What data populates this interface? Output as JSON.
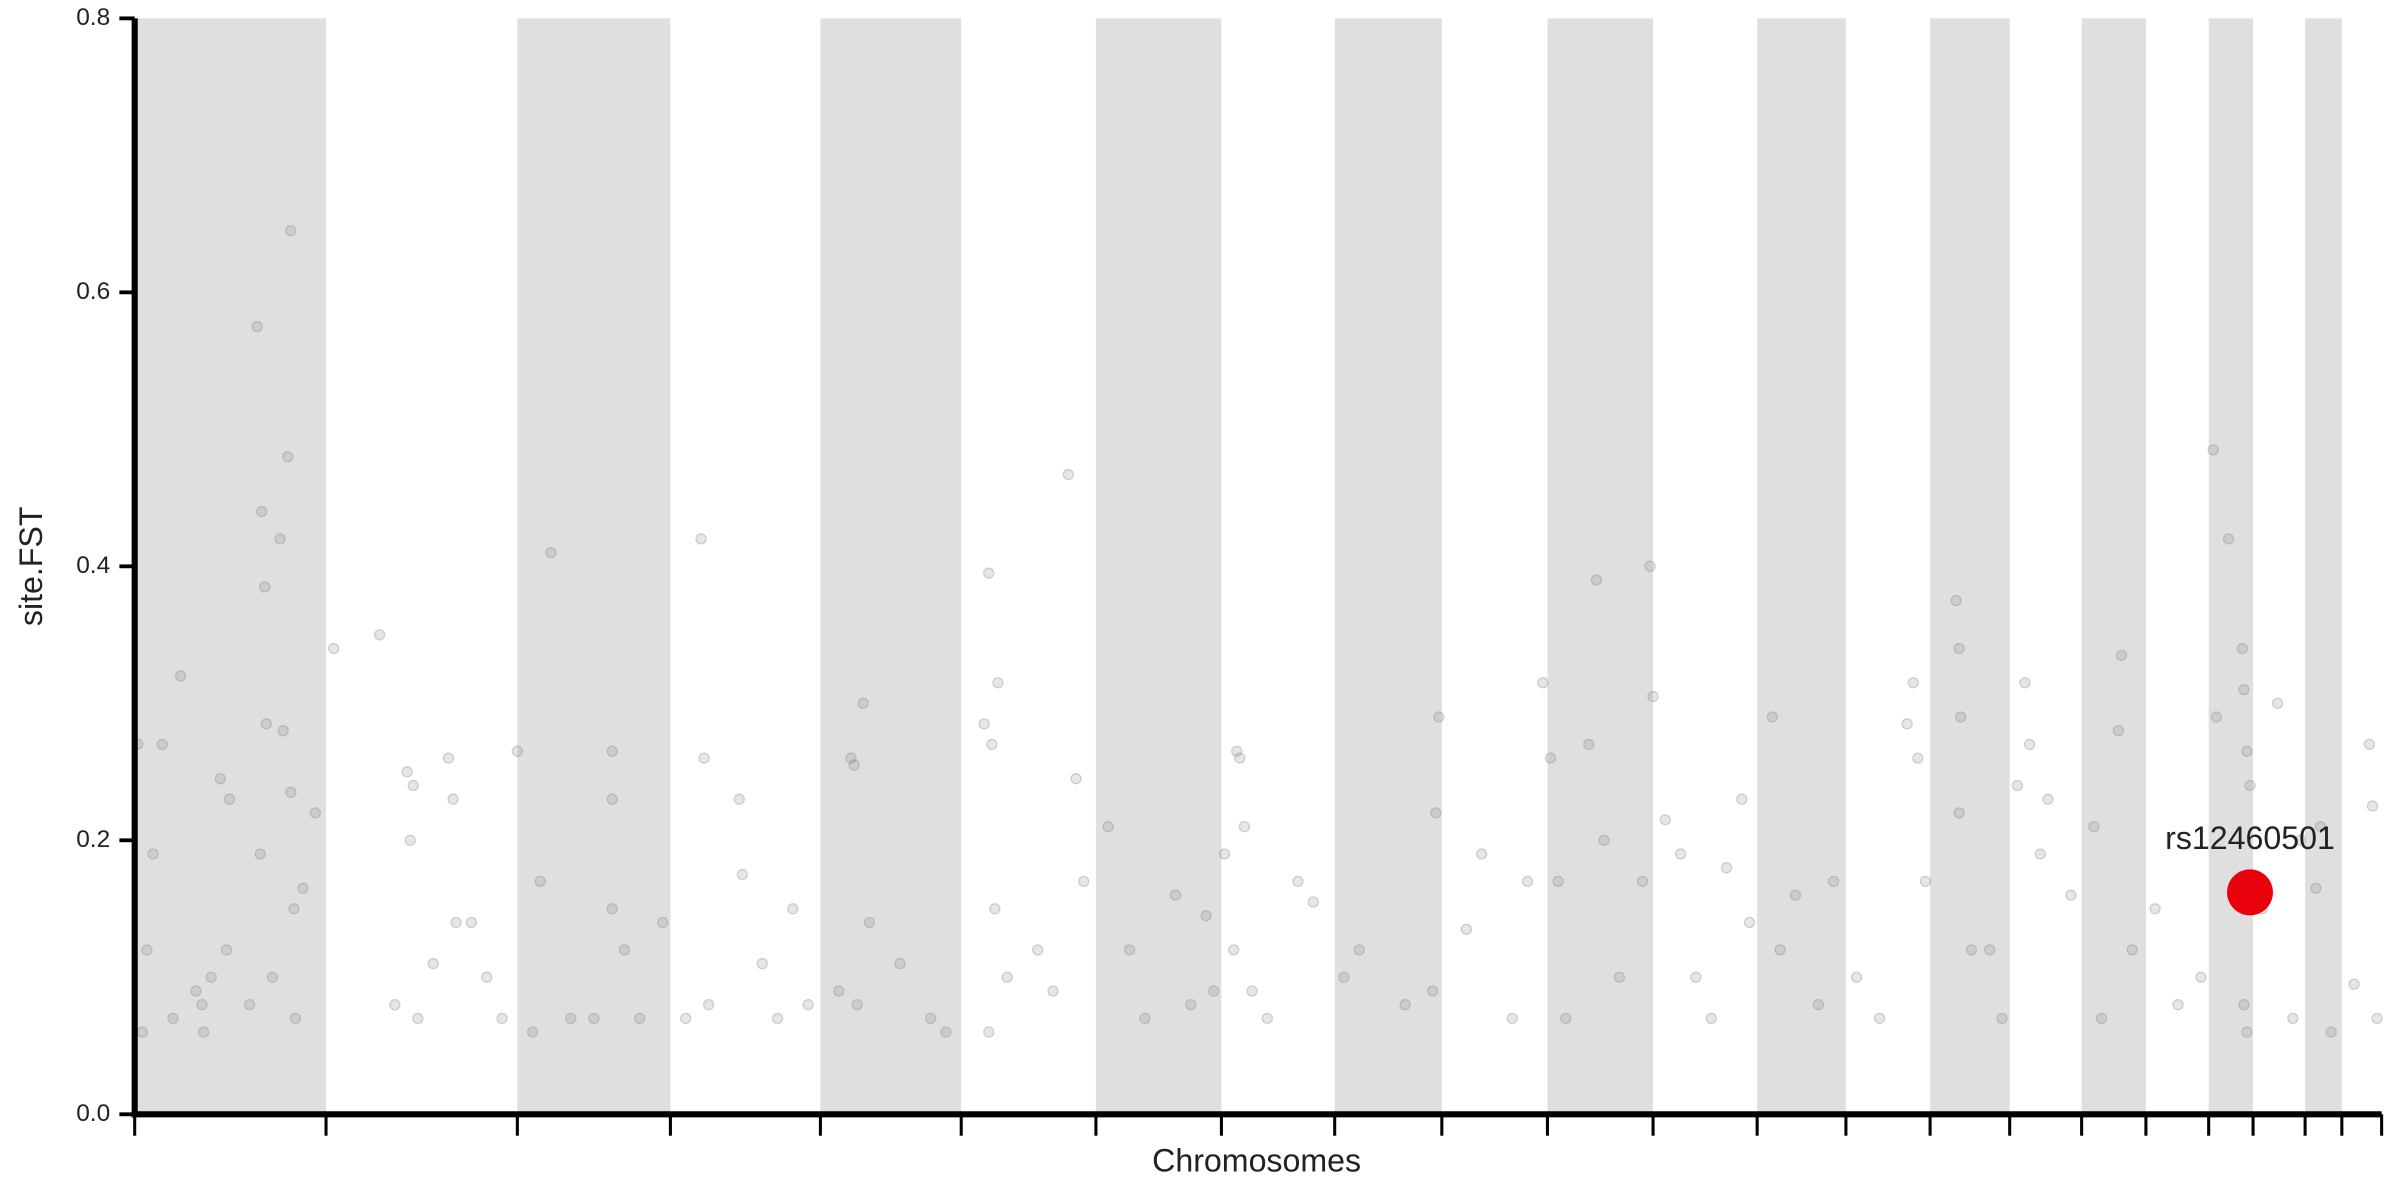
{
  "chart_data": {
    "type": "scatter",
    "xlabel": "Chromosomes",
    "ylabel": "site.FST",
    "xlim": [
      0,
      1468
    ],
    "ylim": [
      0,
      0.8
    ],
    "xticks": [
      0,
      125,
      250,
      350,
      448,
      540,
      628,
      710,
      784,
      854,
      923,
      992,
      1060,
      1118,
      1173,
      1225,
      1272,
      1314,
      1355,
      1384,
      1418,
      1442,
      1468
    ],
    "yticks": [
      {
        "value": 0,
        "label": "0.0"
      },
      0.2,
      0.4,
      0.6,
      0.8
    ],
    "shade_alternate": true,
    "shade_color": "#dfdfdf",
    "series": [
      {
        "color": "#808080",
        "x": [
          2,
          5,
          8,
          12,
          18,
          30,
          44,
          45,
          50,
          56,
          62,
          80,
          82,
          83,
          85,
          86,
          95,
          97,
          100,
          102,
          102,
          104,
          105,
          110,
          118,
          90,
          75,
          60,
          40,
          25,
          130,
          160,
          178,
          180,
          182,
          185,
          205,
          208,
          210,
          220,
          230,
          240,
          195,
          170,
          250,
          265,
          272,
          285,
          300,
          312,
          312,
          312,
          320,
          330,
          345,
          260,
          370,
          372,
          375,
          395,
          397,
          410,
          420,
          430,
          440,
          360,
          468,
          470,
          476,
          472,
          480,
          500,
          520,
          530,
          460,
          555,
          558,
          560,
          562,
          564,
          558,
          570,
          590,
          610,
          615,
          620,
          600,
          636,
          650,
          660,
          680,
          690,
          700,
          705,
          712,
          718,
          720,
          722,
          725,
          740,
          760,
          770,
          730,
          790,
          800,
          830,
          848,
          850,
          852,
          870,
          880,
          900,
          910,
          920,
          925,
          930,
          935,
          950,
          955,
          960,
          970,
          985,
          990,
          992,
          1000,
          1010,
          1020,
          1040,
          1050,
          1055,
          1030,
          1070,
          1075,
          1085,
          1110,
          1100,
          1125,
          1140,
          1158,
          1162,
          1165,
          1170,
          1190,
          1192,
          1193,
          1192,
          1200,
          1212,
          1220,
          1230,
          1235,
          1238,
          1245,
          1250,
          1265,
          1280,
          1285,
          1296,
          1298,
          1305,
          1320,
          1335,
          1350,
          1358,
          1360,
          1368,
          1377,
          1378,
          1380,
          1382,
          1378,
          1380,
          1390,
          1400,
          1410,
          1415,
          1425,
          1428,
          1435,
          1450,
          1460,
          1462,
          1465
        ],
        "y": [
          0.27,
          0.06,
          0.12,
          0.19,
          0.27,
          0.32,
          0.08,
          0.06,
          0.1,
          0.245,
          0.23,
          0.575,
          0.19,
          0.44,
          0.385,
          0.285,
          0.42,
          0.28,
          0.48,
          0.645,
          0.235,
          0.15,
          0.07,
          0.165,
          0.22,
          0.1,
          0.08,
          0.12,
          0.09,
          0.07,
          0.34,
          0.35,
          0.25,
          0.2,
          0.24,
          0.07,
          0.26,
          0.23,
          0.14,
          0.14,
          0.1,
          0.07,
          0.11,
          0.08,
          0.265,
          0.17,
          0.41,
          0.07,
          0.07,
          0.265,
          0.23,
          0.15,
          0.12,
          0.07,
          0.14,
          0.06,
          0.42,
          0.26,
          0.08,
          0.23,
          0.175,
          0.11,
          0.07,
          0.15,
          0.08,
          0.07,
          0.26,
          0.255,
          0.3,
          0.08,
          0.14,
          0.11,
          0.07,
          0.06,
          0.09,
          0.285,
          0.395,
          0.27,
          0.15,
          0.315,
          0.06,
          0.1,
          0.12,
          0.467,
          0.245,
          0.17,
          0.09,
          0.21,
          0.12,
          0.07,
          0.16,
          0.08,
          0.145,
          0.09,
          0.19,
          0.12,
          0.265,
          0.26,
          0.21,
          0.07,
          0.17,
          0.155,
          0.09,
          0.1,
          0.12,
          0.08,
          0.09,
          0.22,
          0.29,
          0.135,
          0.19,
          0.07,
          0.17,
          0.315,
          0.26,
          0.17,
          0.07,
          0.27,
          0.39,
          0.2,
          0.1,
          0.17,
          0.4,
          0.305,
          0.215,
          0.19,
          0.1,
          0.18,
          0.23,
          0.14,
          0.07,
          0.29,
          0.12,
          0.16,
          0.17,
          0.08,
          0.1,
          0.07,
          0.285,
          0.315,
          0.26,
          0.17,
          0.375,
          0.34,
          0.29,
          0.22,
          0.12,
          0.12,
          0.07,
          0.24,
          0.315,
          0.27,
          0.19,
          0.23,
          0.16,
          0.21,
          0.07,
          0.28,
          0.335,
          0.12,
          0.15,
          0.08,
          0.1,
          0.485,
          0.29,
          0.42,
          0.34,
          0.31,
          0.265,
          0.24,
          0.08,
          0.06,
          0.15,
          0.3,
          0.07,
          0.2,
          0.165,
          0.21,
          0.06,
          0.095,
          0.27,
          0.225,
          0.07
        ]
      }
    ],
    "highlight": {
      "x": 1382,
      "y": 0.162,
      "label": "rs12460501",
      "color": "#e8000b"
    }
  }
}
